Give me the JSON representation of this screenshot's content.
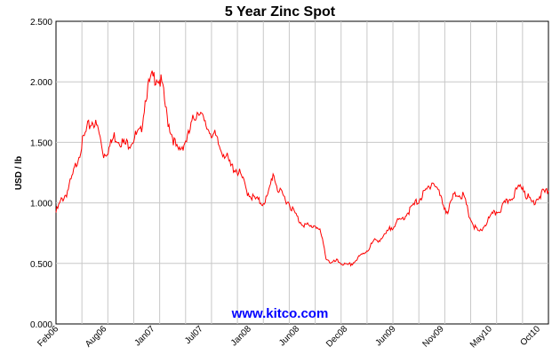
{
  "chart_data": {
    "type": "line",
    "title": "5 Year Zinc Spot",
    "xlabel": "",
    "ylabel": "USD / lb",
    "ylim": [
      0,
      2.5
    ],
    "yticks": [
      "0.000",
      "0.500",
      "1.000",
      "1.500",
      "2.000",
      "2.500"
    ],
    "xticks": [
      "Feb06",
      "Aug06",
      "Jan07",
      "Jul07",
      "Jan08",
      "Jun08",
      "Dec08",
      "Jun09",
      "Nov09",
      "May10",
      "Oct10"
    ],
    "grid": true,
    "watermark": "www.kitco.com",
    "colors": {
      "line": "#ff0000",
      "grid": "#c8c8c8",
      "axis": "#000000",
      "watermark": "#0000ff"
    },
    "series": [
      {
        "values": [
          0.92,
          1.02,
          1.08,
          1.2,
          1.35,
          1.5,
          1.62,
          1.68,
          1.6,
          1.4,
          1.45,
          1.55,
          1.52,
          1.48,
          1.5,
          1.55,
          1.58,
          1.9,
          2.02,
          2.05,
          1.98,
          1.7,
          1.55,
          1.42,
          1.48,
          1.55,
          1.7,
          1.78,
          1.65,
          1.6,
          1.55,
          1.45,
          1.4,
          1.3,
          1.28,
          1.22,
          1.1,
          1.05,
          1.02,
          1.0,
          1.05,
          1.25,
          1.1,
          1.05,
          1.0,
          0.92,
          0.85,
          0.82,
          0.8,
          0.82,
          0.75,
          0.55,
          0.5,
          0.52,
          0.5,
          0.48,
          0.5,
          0.54,
          0.58,
          0.62,
          0.68,
          0.7,
          0.72,
          0.78,
          0.83,
          0.85,
          0.9,
          0.95,
          1.0,
          1.05,
          1.1,
          1.18,
          1.12,
          1.0,
          0.92,
          1.05,
          1.08,
          1.05,
          0.9,
          0.8,
          0.75,
          0.82,
          0.88,
          0.92,
          0.95,
          1.0,
          1.05,
          1.1,
          1.15,
          1.05,
          1.0,
          1.05,
          1.08,
          1.1
        ]
      }
    ]
  }
}
